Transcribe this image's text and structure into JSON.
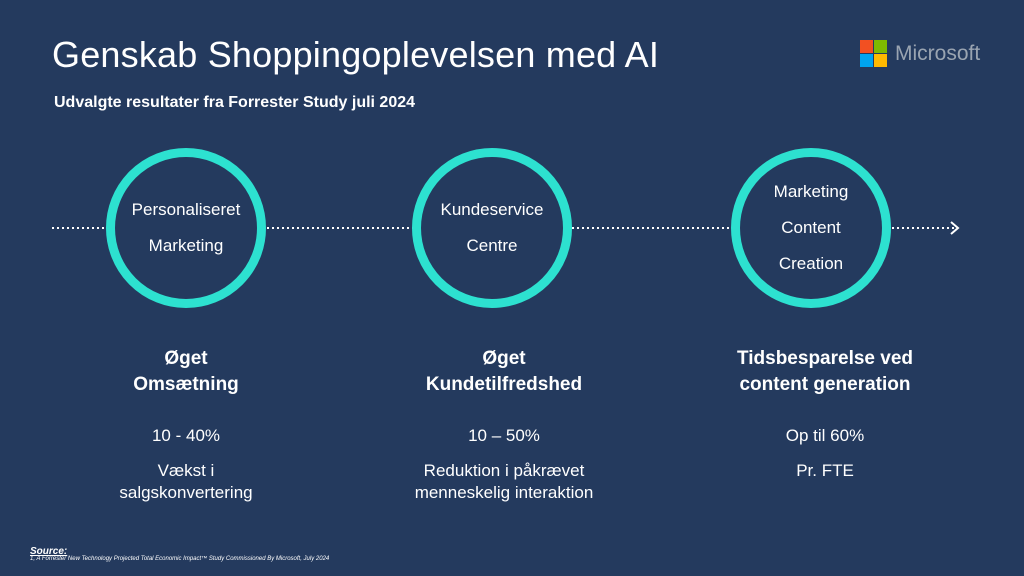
{
  "header": {
    "title": "Genskab Shoppingoplevelsen med AI",
    "subtitle": "Udvalgte resultater fra Forrester Study juli 2024"
  },
  "logo": {
    "text": "Microsoft",
    "colors": [
      "#f25022",
      "#7fba00",
      "#00a4ef",
      "#ffb900"
    ]
  },
  "colors": {
    "background": "#243a5e",
    "accent": "#2de1d0"
  },
  "circles": [
    {
      "lines": [
        "Personaliseret",
        "Marketing"
      ]
    },
    {
      "lines": [
        "Kundeservice",
        "Centre"
      ]
    },
    {
      "lines": [
        "Marketing",
        "Content",
        "Creation"
      ]
    }
  ],
  "results": [
    {
      "heading_line1": "Øget",
      "heading_line2": "Omsætning",
      "metric": "10 - 40%",
      "desc_line1": "Vækst i",
      "desc_line2": "salgskonvertering"
    },
    {
      "heading_line1": "Øget",
      "heading_line2": "Kundetilfredshed",
      "metric": "10 – 50%",
      "desc_line1": "Reduktion i påkrævet",
      "desc_line2": "menneskelig interaktion"
    },
    {
      "heading_line1": "Tidsbesparelse ved",
      "heading_line2": "content generation",
      "metric": "Op til 60%",
      "desc_line1": "Pr. FTE",
      "desc_line2": ""
    }
  ],
  "footer": {
    "source_label": "Source:",
    "footnote": "1, A Forrester New Technology Projected Total Economic Impact™ Study Commissioned By Microsoft, July 2024"
  }
}
